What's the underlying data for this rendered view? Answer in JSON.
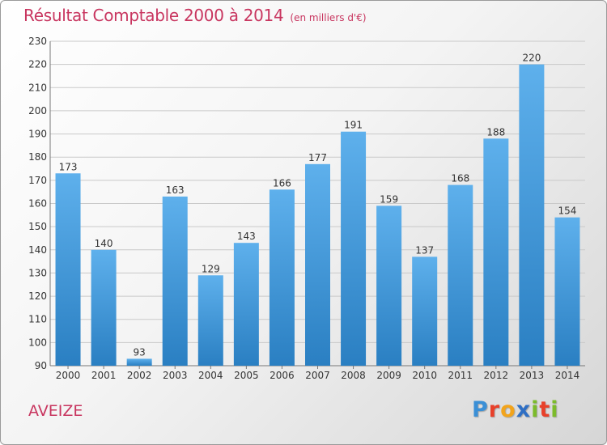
{
  "title": "Résultat Comptable 2000 à 2014",
  "subtitle": "(en milliers d'€)",
  "commune": "AVEIZE",
  "logo": {
    "letters": [
      "P",
      "r",
      "o",
      "x",
      "i",
      "t",
      "i"
    ],
    "colors": [
      "#3a8fd6",
      "#e8402a",
      "#f2a41c",
      "#2f6fc4",
      "#7cbb2b",
      "#e8402a",
      "#7cbb2b"
    ]
  },
  "colors": {
    "bar_light": "#5eb0ec",
    "bar_dark": "#2a7fc2",
    "title": "#c8355f"
  },
  "chart_data": {
    "type": "bar",
    "categories": [
      "2000",
      "2001",
      "2002",
      "2003",
      "2004",
      "2005",
      "2006",
      "2007",
      "2008",
      "2009",
      "2010",
      "2011",
      "2012",
      "2013",
      "2014"
    ],
    "values": [
      173,
      140,
      93,
      163,
      129,
      143,
      166,
      177,
      191,
      159,
      137,
      168,
      188,
      220,
      154
    ],
    "ylim": [
      90,
      230
    ],
    "yticks": [
      90,
      100,
      110,
      120,
      130,
      140,
      150,
      160,
      170,
      180,
      190,
      200,
      210,
      220,
      230
    ],
    "grid": true
  }
}
